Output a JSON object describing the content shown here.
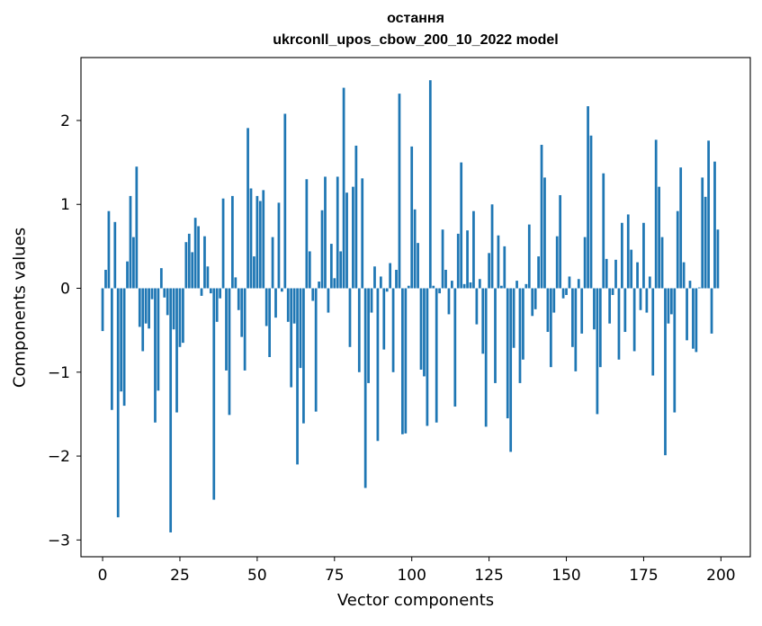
{
  "chart_data": {
    "type": "bar",
    "title": [
      "остання",
      "ukrconll_upos_cbow_200_10_2022 model"
    ],
    "xlabel": "Vector components",
    "ylabel": "Components values",
    "xlim": [
      -7,
      209.5
    ],
    "ylim": [
      -3.2,
      2.75
    ],
    "xticks": [
      0,
      25,
      50,
      75,
      100,
      125,
      150,
      175,
      200
    ],
    "yticks": [
      -3,
      -2,
      -1,
      0,
      1,
      2
    ],
    "ytick_labels": [
      "−3",
      "−2",
      "−1",
      "0",
      "1",
      "2"
    ],
    "grid": false,
    "bar_color": "#1f77b4",
    "x": [
      0,
      1,
      2,
      3,
      4,
      5,
      6,
      7,
      8,
      9,
      10,
      11,
      12,
      13,
      14,
      15,
      16,
      17,
      18,
      19,
      20,
      21,
      22,
      23,
      24,
      25,
      26,
      27,
      28,
      29,
      30,
      31,
      32,
      33,
      34,
      35,
      36,
      37,
      38,
      39,
      40,
      41,
      42,
      43,
      44,
      45,
      46,
      47,
      48,
      49,
      50,
      51,
      52,
      53,
      54,
      55,
      56,
      57,
      58,
      59,
      60,
      61,
      62,
      63,
      64,
      65,
      66,
      67,
      68,
      69,
      70,
      71,
      72,
      73,
      74,
      75,
      76,
      77,
      78,
      79,
      80,
      81,
      82,
      83,
      84,
      85,
      86,
      87,
      88,
      89,
      90,
      91,
      92,
      93,
      94,
      95,
      96,
      97,
      98,
      99,
      100,
      101,
      102,
      103,
      104,
      105,
      106,
      107,
      108,
      109,
      110,
      111,
      112,
      113,
      114,
      115,
      116,
      117,
      118,
      119,
      120,
      121,
      122,
      123,
      124,
      125,
      126,
      127,
      128,
      129,
      130,
      131,
      132,
      133,
      134,
      135,
      136,
      137,
      138,
      139,
      140,
      141,
      142,
      143,
      144,
      145,
      146,
      147,
      148,
      149,
      150,
      151,
      152,
      153,
      154,
      155,
      156,
      157,
      158,
      159,
      160,
      161,
      162,
      163,
      164,
      165,
      166,
      167,
      168,
      169,
      170,
      171,
      172,
      173,
      174,
      175,
      176,
      177,
      178,
      179,
      180,
      181,
      182,
      183,
      184,
      185,
      186,
      187,
      188,
      189,
      190,
      191,
      192,
      193,
      194,
      195,
      196,
      197,
      198,
      199
    ],
    "values": [
      -0.51,
      0.22,
      0.92,
      -1.45,
      0.79,
      -2.73,
      -1.23,
      -1.4,
      0.32,
      1.1,
      0.61,
      1.45,
      -0.46,
      -0.75,
      -0.42,
      -0.48,
      -0.13,
      -1.6,
      -1.22,
      0.24,
      -0.11,
      -0.32,
      -2.91,
      -0.49,
      -1.48,
      -0.7,
      -0.65,
      0.55,
      0.65,
      0.43,
      0.84,
      0.74,
      -0.09,
      0.62,
      0.26,
      -0.06,
      -2.52,
      -0.4,
      -0.12,
      1.07,
      -0.98,
      -1.51,
      1.1,
      0.13,
      -0.26,
      -0.58,
      -0.98,
      1.91,
      1.19,
      0.38,
      1.1,
      1.04,
      1.17,
      -0.45,
      -0.82,
      0.61,
      -0.35,
      1.02,
      -0.04,
      2.08,
      -0.4,
      -1.18,
      -0.42,
      -2.1,
      -0.95,
      -1.61,
      1.3,
      0.44,
      -0.15,
      -1.47,
      0.08,
      0.93,
      1.33,
      -0.29,
      0.53,
      0.12,
      1.33,
      0.44,
      2.39,
      1.14,
      -0.7,
      1.21,
      1.7,
      -1.0,
      1.31,
      -2.38,
      -1.13,
      -0.29,
      0.26,
      -1.82,
      0.14,
      -0.73,
      -0.04,
      0.3,
      -1.0,
      0.22,
      2.32,
      -1.74,
      -1.73,
      0.03,
      1.69,
      0.94,
      0.54,
      -0.97,
      -1.05,
      -1.64,
      2.48,
      0.03,
      -1.6,
      -0.06,
      0.7,
      0.22,
      -0.31,
      0.09,
      -1.41,
      0.65,
      1.5,
      0.05,
      0.69,
      0.07,
      0.92,
      -0.43,
      0.11,
      -0.78,
      -1.65,
      0.42,
      1.0,
      -1.13,
      0.63,
      0.03,
      0.5,
      -1.55,
      -1.95,
      -0.71,
      0.09,
      -1.13,
      -0.85,
      0.05,
      0.76,
      -0.33,
      -0.25,
      0.38,
      1.71,
      1.32,
      -0.52,
      -0.94,
      -0.29,
      0.62,
      1.11,
      -0.12,
      -0.08,
      0.14,
      -0.7,
      -0.99,
      0.11,
      -0.54,
      0.61,
      2.17,
      1.82,
      -0.49,
      -1.5,
      -0.94,
      1.37,
      0.35,
      -0.42,
      -0.08,
      0.34,
      -0.85,
      0.78,
      -0.52,
      0.88,
      0.46,
      -0.75,
      0.31,
      -0.26,
      0.78,
      -0.29,
      0.14,
      -1.04,
      1.77,
      1.21,
      0.61,
      -1.99,
      -0.42,
      -0.31,
      -1.48,
      0.92,
      1.44,
      0.31,
      -0.62,
      0.09,
      -0.72,
      -0.76,
      0.01,
      1.32,
      1.09,
      1.76,
      -0.54,
      1.51,
      0.7
    ]
  }
}
